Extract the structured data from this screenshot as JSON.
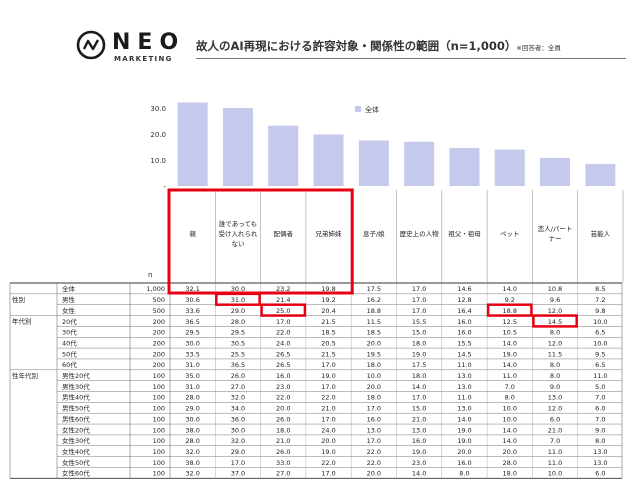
{
  "header": {
    "brand": "NEO",
    "brand_sub": "MARKETING",
    "title": "故人のAI再現における許容対象・関係性の範囲（n=1,000）",
    "note": "※回答者：全員"
  },
  "colors": {
    "bar": "#c5c9ec",
    "highlight": "#e60012",
    "grid": "#555555"
  },
  "chart_data": {
    "type": "bar",
    "legend": "全体",
    "legend_position": "top",
    "ylim": [
      0,
      35
    ],
    "yticks": [
      "30.0",
      "20.0",
      "10.0",
      "-"
    ],
    "categories": [
      "親",
      "誰であっても受け入れられない",
      "配偶者",
      "兄弟姉妹",
      "息子/娘",
      "歴史上の人物",
      "祖父・祖母",
      "ペット",
      "恋人/パートナー",
      "芸能人"
    ],
    "values": [
      32.1,
      30.0,
      23.2,
      19.8,
      17.5,
      17.0,
      14.6,
      14.0,
      10.8,
      8.5
    ]
  },
  "table": {
    "n_label": "n",
    "groups": [
      "性別",
      "年代別",
      "性年代別"
    ],
    "rows": [
      {
        "label": "全体",
        "n": "1,000",
        "v": [
          "32.1",
          "30.0",
          "23.2",
          "19.8",
          "17.5",
          "17.0",
          "14.6",
          "14.0",
          "10.8",
          "8.5"
        ]
      },
      {
        "label": "男性",
        "n": "500",
        "v": [
          "30.6",
          "31.0",
          "21.4",
          "19.2",
          "16.2",
          "17.0",
          "12.8",
          "9.2",
          "9.6",
          "7.2"
        ]
      },
      {
        "label": "女性",
        "n": "500",
        "v": [
          "33.6",
          "29.0",
          "25.0",
          "20.4",
          "18.8",
          "17.0",
          "16.4",
          "18.8",
          "12.0",
          "9.8"
        ]
      },
      {
        "label": "20代",
        "n": "200",
        "v": [
          "36.5",
          "28.0",
          "17.0",
          "21.5",
          "11.5",
          "15.5",
          "16.0",
          "12.5",
          "14.5",
          "10.0"
        ]
      },
      {
        "label": "30代",
        "n": "200",
        "v": [
          "29.5",
          "29.5",
          "22.0",
          "18.5",
          "18.5",
          "15.0",
          "16.0",
          "10.5",
          "8.0",
          "6.5"
        ]
      },
      {
        "label": "40代",
        "n": "200",
        "v": [
          "30.0",
          "30.5",
          "24.0",
          "20.5",
          "20.0",
          "18.0",
          "15.5",
          "14.0",
          "12.0",
          "10.0"
        ]
      },
      {
        "label": "50代",
        "n": "200",
        "v": [
          "33.5",
          "25.5",
          "26.5",
          "21.5",
          "19.5",
          "19.0",
          "14.5",
          "19.0",
          "11.5",
          "9.5"
        ]
      },
      {
        "label": "60代",
        "n": "200",
        "v": [
          "31.0",
          "36.5",
          "26.5",
          "17.0",
          "18.0",
          "17.5",
          "11.0",
          "14.0",
          "8.0",
          "6.5"
        ]
      },
      {
        "label": "男性20代",
        "n": "100",
        "v": [
          "35.0",
          "26.0",
          "16.0",
          "19.0",
          "10.0",
          "18.0",
          "13.0",
          "11.0",
          "8.0",
          "11.0"
        ]
      },
      {
        "label": "男性30代",
        "n": "100",
        "v": [
          "31.0",
          "27.0",
          "23.0",
          "17.0",
          "20.0",
          "14.0",
          "13.0",
          "7.0",
          "9.0",
          "5.0"
        ]
      },
      {
        "label": "男性40代",
        "n": "100",
        "v": [
          "28.0",
          "32.0",
          "22.0",
          "22.0",
          "18.0",
          "17.0",
          "11.0",
          "8.0",
          "13.0",
          "7.0"
        ]
      },
      {
        "label": "男性50代",
        "n": "100",
        "v": [
          "29.0",
          "34.0",
          "20.0",
          "21.0",
          "17.0",
          "15.0",
          "13.0",
          "10.0",
          "12.0",
          "6.0"
        ]
      },
      {
        "label": "男性60代",
        "n": "100",
        "v": [
          "30.0",
          "36.0",
          "26.0",
          "17.0",
          "16.0",
          "21.0",
          "14.0",
          "10.0",
          "6.0",
          "7.0"
        ]
      },
      {
        "label": "女性20代",
        "n": "100",
        "v": [
          "38.0",
          "30.0",
          "18.0",
          "24.0",
          "13.0",
          "13.0",
          "19.0",
          "14.0",
          "21.0",
          "9.0"
        ]
      },
      {
        "label": "女性30代",
        "n": "100",
        "v": [
          "28.0",
          "32.0",
          "21.0",
          "20.0",
          "17.0",
          "16.0",
          "19.0",
          "14.0",
          "7.0",
          "8.0"
        ]
      },
      {
        "label": "女性40代",
        "n": "100",
        "v": [
          "32.0",
          "29.0",
          "26.0",
          "19.0",
          "22.0",
          "19.0",
          "20.0",
          "20.0",
          "11.0",
          "13.0"
        ]
      },
      {
        "label": "女性50代",
        "n": "100",
        "v": [
          "38.0",
          "17.0",
          "33.0",
          "22.0",
          "22.0",
          "23.0",
          "16.0",
          "28.0",
          "11.0",
          "13.0"
        ]
      },
      {
        "label": "女性60代",
        "n": "100",
        "v": [
          "32.0",
          "37.0",
          "27.0",
          "17.0",
          "20.0",
          "14.0",
          "8.0",
          "18.0",
          "10.0",
          "6.0"
        ]
      }
    ]
  }
}
